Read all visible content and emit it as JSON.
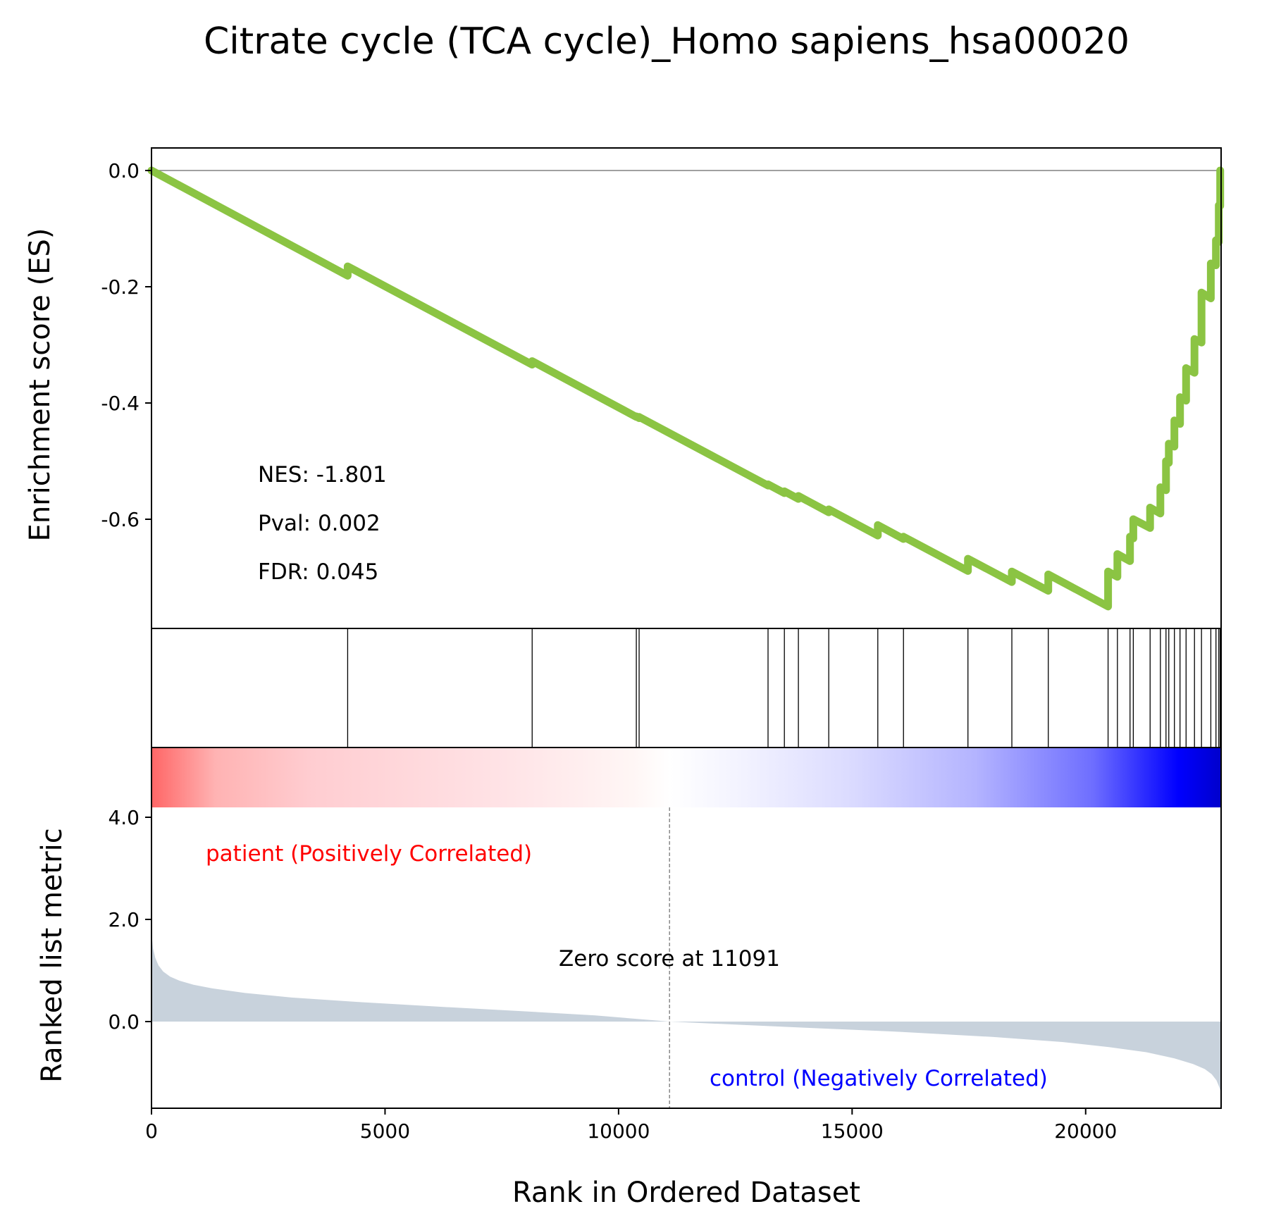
{
  "title": "Citrate cycle (TCA cycle)_Homo sapiens_hsa00020",
  "stats": {
    "nes": "NES: -1.801",
    "pval": "Pval: 0.002",
    "fdr": "FDR: 0.045"
  },
  "labels": {
    "es_ylabel": "Enrichment score (ES)",
    "rank_ylabel": "Ranked list metric",
    "xlabel": "Rank in Ordered Dataset",
    "positive": "patient (Positively Correlated)",
    "negative": "control (Negatively Correlated)",
    "zero_score": "Zero score at 11091"
  },
  "colors": {
    "es_line": "#8BC443",
    "positive_text": "#FF0000",
    "negative_text": "#0000FF",
    "metric_fill": "#C8D2DC",
    "heat_red": "#FF6666",
    "heat_blue": "#0000CC"
  },
  "chart_data": [
    {
      "type": "line",
      "panel": "enrichment",
      "ylabel": "Enrichment score (ES)",
      "xlim": [
        0,
        22900
      ],
      "ylim": [
        -0.8,
        0.04
      ],
      "yticks": [
        "0.0",
        "-0.2",
        "-0.4",
        "-0.6"
      ],
      "yticks_values": [
        0.0,
        -0.2,
        -0.4,
        -0.6
      ],
      "hits": [
        4200,
        8150,
        10380,
        10440,
        13200,
        13550,
        13850,
        14500,
        15550,
        16100,
        17480,
        18420,
        19200,
        20480,
        20680,
        20950,
        21020,
        21380,
        21600,
        21720,
        21780,
        21900,
        22020,
        22150,
        22330,
        22480,
        22680,
        22790,
        22850,
        22880
      ],
      "es_curve": {
        "x": [
          0,
          4200,
          4200,
          8150,
          8150,
          10380,
          10380,
          10440,
          10440,
          13200,
          13200,
          13550,
          13550,
          13850,
          13850,
          14500,
          14500,
          15550,
          15550,
          16100,
          16100,
          17480,
          17480,
          18420,
          18420,
          19200,
          19200,
          20480,
          20480,
          20680,
          20680,
          20950,
          20950,
          21020,
          21020,
          21380,
          21380,
          21600,
          21600,
          21720,
          21720,
          21780,
          21780,
          21900,
          21900,
          22020,
          22020,
          22150,
          22150,
          22330,
          22330,
          22480,
          22480,
          22680,
          22680,
          22790,
          22790,
          22850,
          22850,
          22880,
          22880
        ],
        "y": [
          0,
          -0.181,
          -0.165,
          -0.334,
          -0.328,
          -0.424,
          -0.423,
          -0.426,
          -0.424,
          -0.542,
          -0.54,
          -0.555,
          -0.552,
          -0.565,
          -0.56,
          -0.588,
          -0.583,
          -0.628,
          -0.61,
          -0.634,
          -0.63,
          -0.689,
          -0.668,
          -0.708,
          -0.69,
          -0.723,
          -0.695,
          -0.75,
          -0.69,
          -0.699,
          -0.66,
          -0.672,
          -0.63,
          -0.633,
          -0.6,
          -0.615,
          -0.58,
          -0.59,
          -0.545,
          -0.55,
          -0.5,
          -0.503,
          -0.47,
          -0.475,
          -0.43,
          -0.436,
          -0.39,
          -0.396,
          -0.34,
          -0.348,
          -0.29,
          -0.296,
          -0.21,
          -0.22,
          -0.16,
          -0.163,
          -0.12,
          -0.123,
          -0.06,
          -0.061,
          0.0
        ]
      }
    },
    {
      "type": "area",
      "panel": "ranked_metric",
      "ylabel": "Ranked list metric",
      "xlabel": "Rank in Ordered Dataset",
      "xlim": [
        0,
        22900
      ],
      "ylim": [
        -1.7,
        4.0
      ],
      "xticks": [
        "0",
        "5000",
        "10000",
        "15000",
        "20000"
      ],
      "xticks_values": [
        0,
        5000,
        10000,
        15000,
        20000
      ],
      "yticks": [
        "4.0",
        "2.0",
        "0.0"
      ],
      "yticks_values": [
        4.0,
        2.0,
        0.0
      ],
      "zero_score_rank": 11091,
      "metric": {
        "x": [
          0,
          30,
          80,
          150,
          250,
          400,
          600,
          900,
          1300,
          2000,
          3000,
          4500,
          6000,
          8000,
          9500,
          11091,
          12500,
          14000,
          16000,
          18000,
          19500,
          20500,
          21300,
          21900,
          22300,
          22550,
          22700,
          22800,
          22860,
          22900
        ],
        "y": [
          1.75,
          1.45,
          1.25,
          1.1,
          0.98,
          0.88,
          0.8,
          0.72,
          0.65,
          0.56,
          0.47,
          0.38,
          0.3,
          0.2,
          0.12,
          0.0,
          -0.06,
          -0.12,
          -0.2,
          -0.3,
          -0.4,
          -0.5,
          -0.6,
          -0.72,
          -0.83,
          -0.93,
          -1.03,
          -1.15,
          -1.28,
          -1.4
        ]
      }
    }
  ]
}
